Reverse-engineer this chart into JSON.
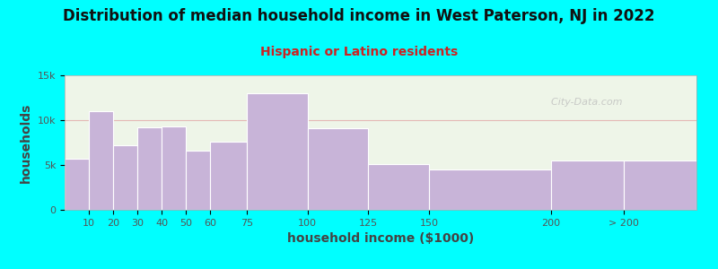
{
  "title": "Distribution of median household income in West Paterson, NJ in 2022",
  "subtitle": "Hispanic or Latino residents",
  "xlabel": "household income ($1000)",
  "ylabel": "households",
  "background_color": "#00ffff",
  "plot_bg_color": "#eef5e8",
  "bar_color": "#c8b4d8",
  "bar_edge_color": "#ffffff",
  "left_edges": [
    0,
    10,
    20,
    30,
    40,
    50,
    60,
    75,
    100,
    125,
    150,
    200,
    230
  ],
  "widths": [
    10,
    10,
    10,
    10,
    10,
    10,
    15,
    25,
    25,
    25,
    50,
    30,
    30
  ],
  "values": [
    5700,
    11000,
    7200,
    9200,
    9300,
    6600,
    7600,
    13000,
    9100,
    5100,
    4500,
    5500,
    5500
  ],
  "tick_positions": [
    10,
    20,
    30,
    40,
    50,
    60,
    75,
    100,
    125,
    150,
    200,
    230
  ],
  "tick_labels": [
    "10",
    "20",
    "30",
    "40",
    "50",
    "60",
    "75",
    "100",
    "125",
    "150",
    "200",
    "> 200"
  ],
  "ylim": [
    0,
    15000
  ],
  "yticks": [
    0,
    5000,
    10000,
    15000
  ],
  "ytick_labels": [
    "0",
    "5k",
    "10k",
    "15k"
  ],
  "title_fontsize": 12,
  "subtitle_fontsize": 10,
  "axis_label_fontsize": 10,
  "tick_fontsize": 8,
  "title_color": "#111111",
  "subtitle_color": "#cc2222",
  "axis_label_color": "#444444",
  "tick_color": "#555555",
  "watermark_text": "  City-Data.com",
  "grid_color": "#e0a0a0",
  "grid_alpha": 0.7,
  "xlim": [
    0,
    260
  ]
}
